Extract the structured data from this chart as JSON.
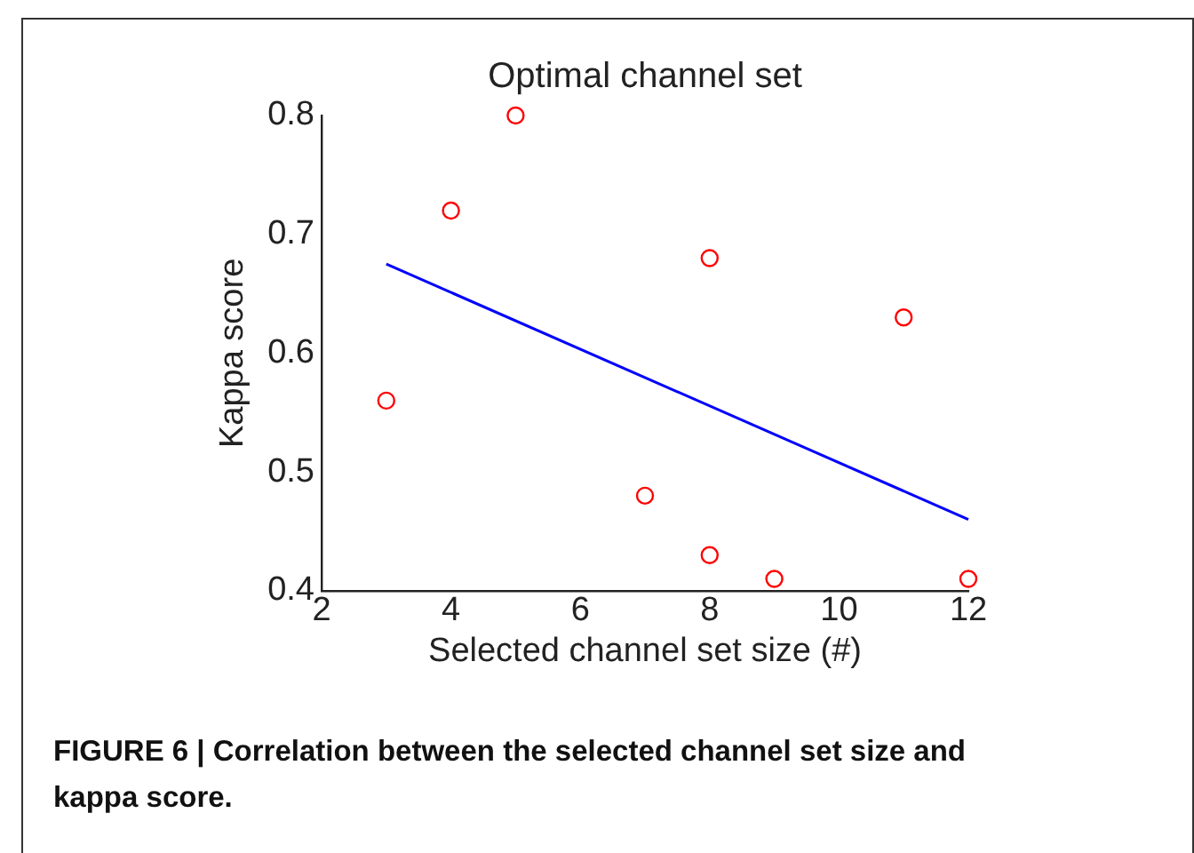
{
  "chart_data": {
    "type": "scatter",
    "title": "Optimal channel set",
    "xlabel": "Selected channel set size (#)",
    "ylabel": "Kappa score",
    "annotations": [
      "FIGURE 6 | Correlation between the selected channel set size and kappa score."
    ],
    "xlim": [
      2,
      12
    ],
    "xticks": [
      2,
      4,
      6,
      8,
      10,
      12
    ],
    "ylim": [
      0.4,
      0.8
    ],
    "yticks": [
      0.4,
      0.5,
      0.6,
      0.7,
      0.8
    ],
    "series": [
      {
        "color": "#ff0000",
        "marker": "circle",
        "x": [
          3,
          4,
          5,
          7,
          8,
          8,
          9,
          11,
          12
        ],
        "values": [
          0.56,
          0.72,
          0.8,
          0.48,
          0.68,
          0.43,
          0.41,
          0.63,
          0.41
        ]
      },
      {
        "type": "line",
        "color": "#0000ff",
        "marker": "none",
        "x": [
          3,
          12
        ],
        "values": [
          0.675,
          0.46
        ]
      }
    ]
  }
}
